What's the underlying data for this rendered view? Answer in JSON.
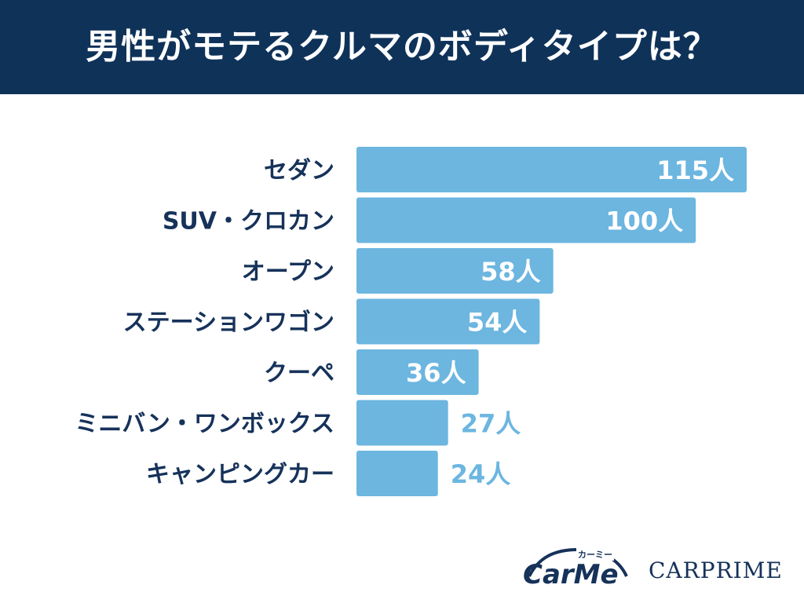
{
  "title": "男性がモテるクルマのボディタイプは？",
  "chart_data": {
    "type": "bar",
    "orientation": "horizontal",
    "categories": [
      "セダン",
      "SUV・クロカン",
      "オープン",
      "ステーションワゴン",
      "クーペ",
      "ミニバン・ワンボックス",
      "キャンピングカー"
    ],
    "values": [
      115,
      100,
      58,
      54,
      36,
      27,
      24
    ],
    "value_labels": [
      "115人",
      "100人",
      "58人",
      "54人",
      "36人",
      "27人",
      "24人"
    ],
    "unit": "人",
    "xlim": [
      0,
      115
    ],
    "bar_color": "#6cb6e0",
    "label_color_inside": "#ffffff",
    "label_color_outside": "#6cb6e0",
    "grid": false,
    "legend": "none"
  },
  "logos": {
    "carme": "CarMe",
    "carme_sub": "カーミー",
    "carprime": "CARPRIME"
  },
  "colors": {
    "header_bg": "#0f3259",
    "text_dark": "#16325a"
  }
}
